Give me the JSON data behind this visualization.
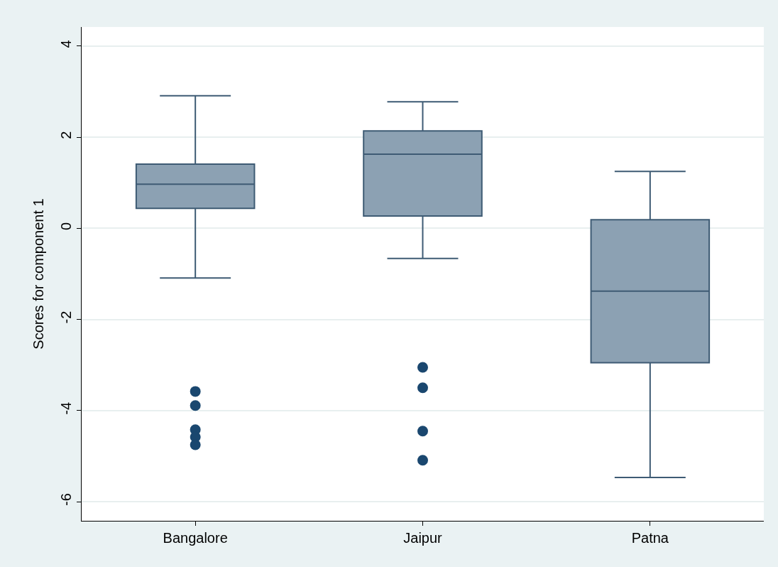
{
  "chart_data": {
    "type": "box",
    "ylabel": "Scores for component 1",
    "categories": [
      "Bangalore",
      "Jaipur",
      "Patna"
    ],
    "boxes": [
      {
        "low": -1.09,
        "q1": 0.44,
        "median": 0.97,
        "q3": 1.41,
        "high": 2.91,
        "outliers": [
          -3.58,
          -3.89,
          -4.42,
          -4.58,
          -4.75
        ]
      },
      {
        "low": -0.66,
        "q1": 0.27,
        "median": 1.63,
        "q3": 2.14,
        "high": 2.78,
        "outliers": [
          -3.05,
          -3.5,
          -4.45,
          -5.09
        ]
      },
      {
        "low": -5.47,
        "q1": -2.95,
        "median": -1.38,
        "q3": 0.19,
        "high": 1.25
      }
    ],
    "color": "#8ca1b3",
    "ylim": [
      -6.42,
      4.42
    ],
    "yticks": [
      -6,
      -4,
      -2,
      0,
      2,
      4
    ],
    "grid": "y",
    "marker": "circle"
  }
}
